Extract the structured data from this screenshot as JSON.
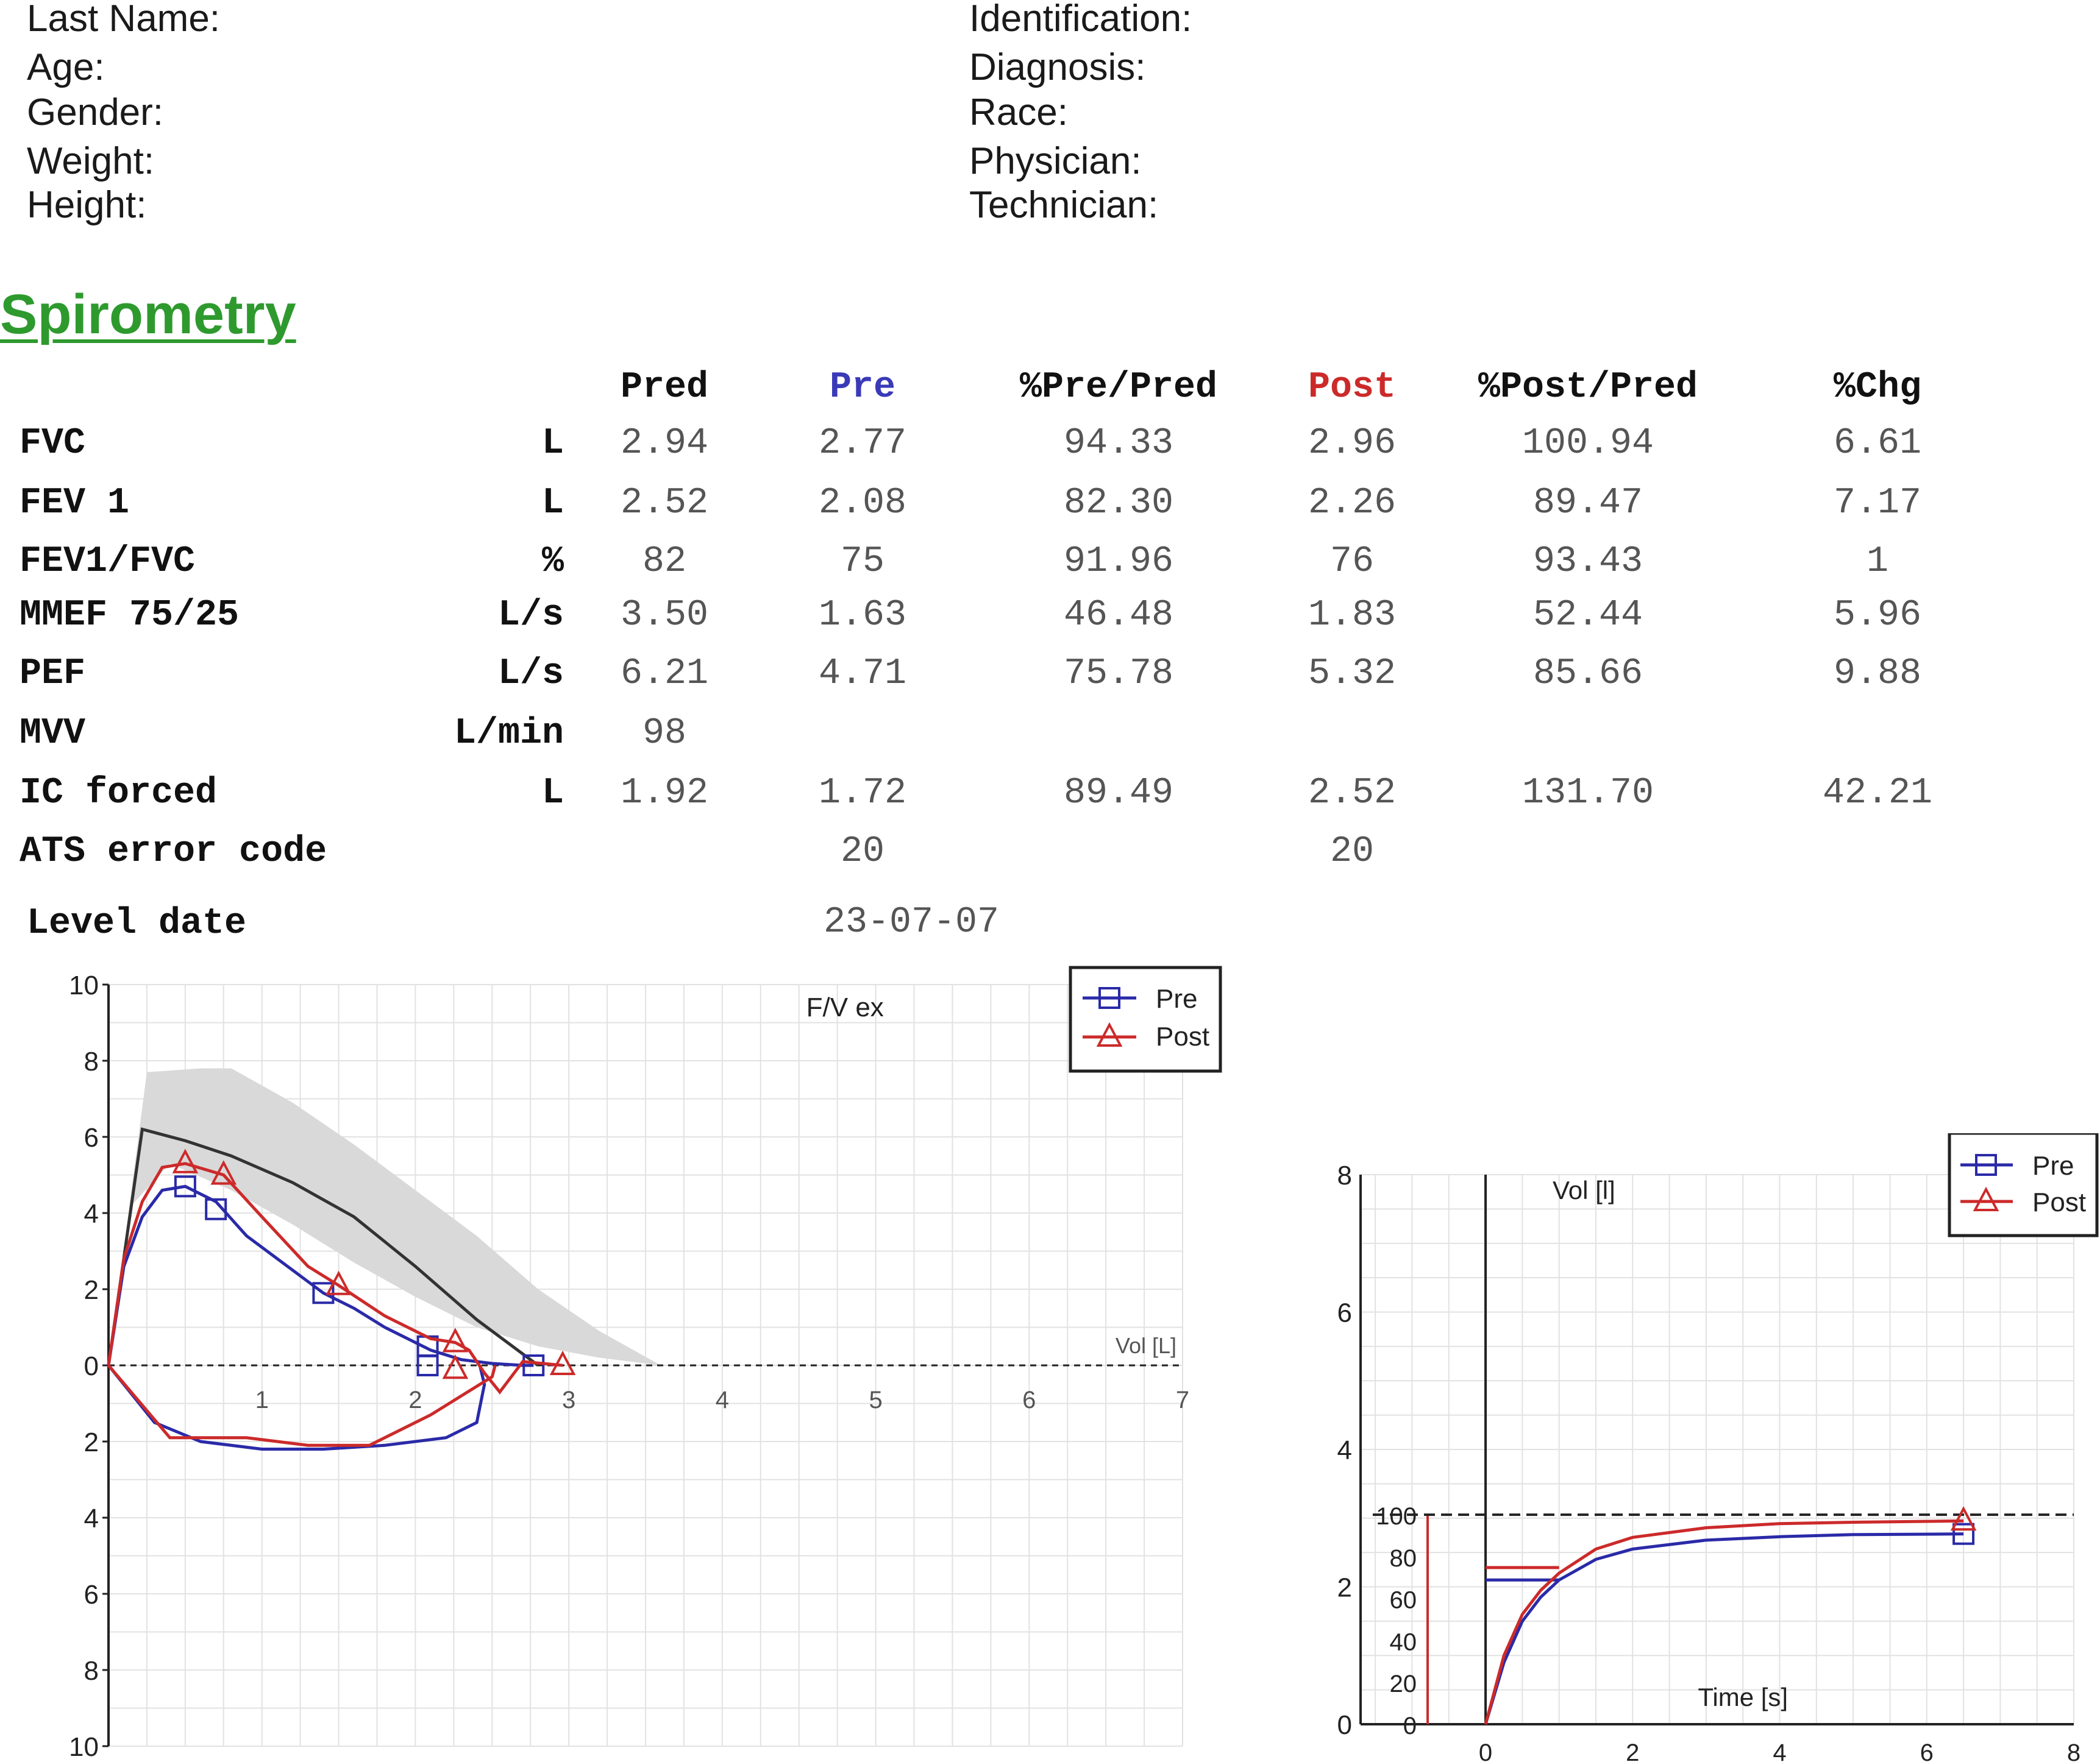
{
  "patient": {
    "left": [
      "Last Name:",
      "Age:",
      "Gender:",
      "Weight:",
      "Height:"
    ],
    "right": [
      "Identification:",
      "Diagnosis:",
      "Race:",
      "Physician:",
      "Technician:"
    ]
  },
  "section_title": "Spirometry",
  "colors": {
    "pre": "#2a2aa8",
    "post": "#cc2a2a",
    "title": "#2e9a2e",
    "predicted_band": "#d9d9d9"
  },
  "table": {
    "headers": [
      "Pred",
      "Pre",
      "%Pre/Pred",
      "Post",
      "%Post/Pred",
      "%Chg"
    ],
    "rows": [
      {
        "name": "FVC",
        "unit": "L",
        "values": [
          "2.94",
          "2.77",
          "94.33",
          "2.96",
          "100.94",
          "6.61"
        ]
      },
      {
        "name": "FEV 1",
        "unit": "L",
        "values": [
          "2.52",
          "2.08",
          "82.30",
          "2.26",
          "89.47",
          "7.17"
        ]
      },
      {
        "name": "FEV1/FVC",
        "unit": "%",
        "values": [
          "82",
          "75",
          "91.96",
          "76",
          "93.43",
          "1"
        ]
      },
      {
        "name": "MMEF 75/25",
        "unit": "L/s",
        "values": [
          "3.50",
          "1.63",
          "46.48",
          "1.83",
          "52.44",
          "5.96"
        ]
      },
      {
        "name": "PEF",
        "unit": "L/s",
        "values": [
          "6.21",
          "4.71",
          "75.78",
          "5.32",
          "85.66",
          "9.88"
        ]
      },
      {
        "name": "MVV",
        "unit": "L/min",
        "values": [
          "98",
          "",
          "",
          "",
          "",
          ""
        ]
      },
      {
        "name": "IC forced",
        "unit": "L",
        "values": [
          "1.92",
          "1.72",
          "89.49",
          "2.52",
          "131.70",
          "42.21"
        ]
      },
      {
        "name": "ATS error code",
        "unit": "",
        "values": [
          "",
          "20",
          "",
          "20",
          "",
          ""
        ]
      }
    ],
    "level_date_label": "Level date",
    "level_date_value": "23-07-07"
  },
  "chart_data": [
    {
      "type": "line",
      "title": "F/V ex",
      "xlabel": "Vol [L]",
      "ylabel": "",
      "xlim": [
        0,
        7
      ],
      "ylim": [
        -10,
        10
      ],
      "x_ticks": [
        "1",
        "2",
        "3",
        "4",
        "5",
        "6",
        "7"
      ],
      "y_ticks": [
        "10",
        "8",
        "6",
        "4",
        "2",
        "0",
        "2",
        "4",
        "6",
        "8",
        "10"
      ],
      "grid": true,
      "legend": "top-right",
      "legend_entries": [
        "Pre",
        "Post"
      ],
      "predicted_band": {
        "upper": [
          [
            0,
            0
          ],
          [
            0.25,
            7.7
          ],
          [
            0.6,
            7.8
          ],
          [
            0.8,
            7.8
          ],
          [
            1.2,
            6.9
          ],
          [
            1.6,
            5.8
          ],
          [
            2.0,
            4.6
          ],
          [
            2.4,
            3.4
          ],
          [
            2.8,
            2.0
          ],
          [
            3.2,
            0.9
          ],
          [
            3.6,
            0
          ]
        ],
        "lower": [
          [
            3.6,
            0
          ],
          [
            3.2,
            0.2
          ],
          [
            2.8,
            0.5
          ],
          [
            2.4,
            1.0
          ],
          [
            2.0,
            1.8
          ],
          [
            1.6,
            2.7
          ],
          [
            1.2,
            3.7
          ],
          [
            0.8,
            4.6
          ],
          [
            0.4,
            5.3
          ],
          [
            0.15,
            4.2
          ],
          [
            0,
            0
          ]
        ]
      },
      "series": [
        {
          "name": "",
          "x": [
            0,
            0.22,
            0.5,
            0.8,
            1.2,
            1.6,
            2.0,
            2.4,
            2.8
          ],
          "y": [
            0,
            6.2,
            5.9,
            5.5,
            4.8,
            3.9,
            2.6,
            1.2,
            0
          ]
        },
        {
          "name": "Pre",
          "x": [
            0,
            0.1,
            0.22,
            0.35,
            0.5,
            0.7,
            0.9,
            1.2,
            1.4,
            1.6,
            1.8,
            2.0,
            2.1,
            2.3,
            2.5,
            2.7,
            2.77
          ],
          "y": [
            0,
            2.6,
            3.9,
            4.6,
            4.7,
            4.3,
            3.4,
            2.5,
            1.9,
            1.5,
            1.0,
            0.6,
            0.4,
            0.15,
            0.05,
            0.0,
            0.0
          ],
          "markers": [
            [
              0.5,
              4.7
            ],
            [
              0.7,
              4.1
            ],
            [
              1.4,
              1.9
            ],
            [
              2.08,
              0.5
            ],
            [
              2.08,
              0.0
            ],
            [
              2.77,
              0.0
            ]
          ],
          "inspiratory": {
            "x": [
              0,
              0.3,
              0.6,
              1.0,
              1.4,
              1.8,
              2.2,
              2.4,
              2.45,
              2.42
            ],
            "y": [
              0,
              -1.5,
              -2.0,
              -2.2,
              -2.2,
              -2.1,
              -1.9,
              -1.5,
              -0.5,
              0
            ]
          }
        },
        {
          "name": "Post",
          "x": [
            0,
            0.1,
            0.22,
            0.35,
            0.5,
            0.75,
            1.0,
            1.3,
            1.5,
            1.8,
            2.1,
            2.26,
            2.35,
            2.45,
            2.55,
            2.7,
            2.96
          ],
          "y": [
            0,
            2.8,
            4.3,
            5.2,
            5.3,
            5.0,
            3.9,
            2.6,
            2.1,
            1.3,
            0.7,
            0.6,
            0.4,
            -0.2,
            -0.7,
            0.1,
            0.0
          ],
          "markers": [
            [
              0.5,
              5.3
            ],
            [
              0.75,
              5.0
            ],
            [
              1.5,
              2.1
            ],
            [
              2.26,
              0.6
            ],
            [
              2.26,
              -0.1
            ],
            [
              2.96,
              0.0
            ]
          ],
          "inspiratory": {
            "x": [
              0,
              0.4,
              0.9,
              1.3,
              1.7,
              1.9,
              2.1,
              2.26,
              2.5,
              2.52
            ],
            "y": [
              0,
              -1.9,
              -1.9,
              -2.1,
              -2.1,
              -1.7,
              -1.3,
              -0.9,
              -0.3,
              0
            ]
          }
        }
      ]
    },
    {
      "type": "line",
      "title": "",
      "xlabel": "Time [s]",
      "ylabel": "Vol [l]",
      "xlim": [
        -1.7,
        8
      ],
      "ylim": [
        0,
        8
      ],
      "x_ticks": [
        "0",
        "2",
        "4",
        "6",
        "8"
      ],
      "y_ticks": [
        "8",
        "6",
        "4",
        "2",
        "0"
      ],
      "secondary_y_ticks": [
        "100",
        "80",
        "60",
        "40",
        "20",
        "0"
      ],
      "reference_line": 3.05,
      "grid": true,
      "legend": "top-right",
      "legend_entries": [
        "Pre",
        "Post"
      ],
      "series": [
        {
          "name": "Pre",
          "x": [
            0,
            0.25,
            0.5,
            0.75,
            1.0,
            1.5,
            2.0,
            3.0,
            4.0,
            5.0,
            6.5
          ],
          "y": [
            0,
            0.9,
            1.5,
            1.85,
            2.1,
            2.4,
            2.55,
            2.68,
            2.73,
            2.76,
            2.77
          ],
          "marker": [
            6.5,
            2.77
          ],
          "pre_step": [
            -1.2,
            2.1
          ]
        },
        {
          "name": "Post",
          "x": [
            0,
            0.25,
            0.5,
            0.75,
            1.0,
            1.5,
            2.0,
            3.0,
            4.0,
            5.0,
            6.5
          ],
          "y": [
            0,
            1.0,
            1.6,
            1.95,
            2.2,
            2.55,
            2.72,
            2.86,
            2.92,
            2.94,
            2.96
          ],
          "marker": [
            6.5,
            2.96
          ],
          "pre_step": [
            -1.2,
            2.28
          ]
        }
      ]
    }
  ]
}
